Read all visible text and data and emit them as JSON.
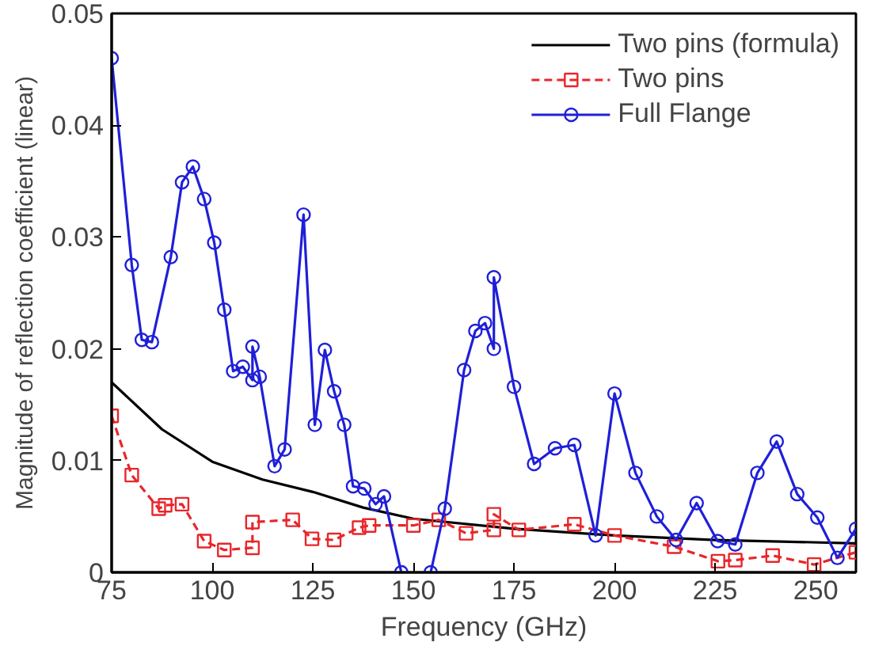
{
  "chart_data": {
    "type": "line",
    "xlabel": "Frequency (GHz)",
    "ylabel": "Magnitude of reflection coefficient (linear)",
    "xlim": [
      75,
      260
    ],
    "xticks": [
      75,
      100,
      125,
      150,
      175,
      200,
      225,
      250
    ],
    "ylim": [
      0,
      0.05
    ],
    "yticks": [
      {
        "value": 0,
        "label": "0"
      },
      0.01,
      0.02,
      0.03,
      0.04,
      0.05
    ],
    "grid": false,
    "legend": "top right",
    "series": [
      {
        "name": "Two pins (formula)",
        "color": "#000000",
        "line_style": "solid",
        "marker": "none",
        "x": [
          75,
          87.5,
          100,
          112.5,
          125,
          137.5,
          150,
          175,
          200,
          225,
          260
        ],
        "values": [
          0.017,
          0.0128,
          0.0099,
          0.0083,
          0.0072,
          0.0058,
          0.0048,
          0.0039,
          0.0033,
          0.0029,
          0.0026
        ]
      },
      {
        "name": "Two pins",
        "color": "#e8262a",
        "line_style": "dashed",
        "marker": "square",
        "x": [
          75,
          80,
          86.7,
          88.3,
          92.5,
          98,
          103,
          110,
          110,
          120,
          124.8,
          130.3,
          136.5,
          139,
          150,
          156.3,
          163.1,
          170,
          170,
          176.2,
          190,
          200,
          214.8,
          225.7,
          230,
          239.3,
          249.6,
          260
        ],
        "values": [
          0.014,
          0.0087,
          0.0057,
          0.006,
          0.0061,
          0.0028,
          0.002,
          0.0022,
          0.0045,
          0.0047,
          0.003,
          0.0029,
          0.004,
          0.0042,
          0.0042,
          0.0047,
          0.0035,
          0.0038,
          0.0052,
          0.0038,
          0.0043,
          0.0033,
          0.0023,
          0.001,
          0.0011,
          0.0015,
          0.0007,
          0.0018
        ]
      },
      {
        "name": "Full Flange",
        "color": "#1f1fd8",
        "line_style": "solid",
        "marker": "circle",
        "x": [
          75,
          80,
          82.5,
          85,
          89.7,
          92.5,
          95.2,
          98,
          100.5,
          103,
          105.2,
          107.6,
          110,
          110,
          111.8,
          115.5,
          118,
          122.7,
          125.5,
          128,
          130.3,
          132.8,
          135,
          137.8,
          140.6,
          142.7,
          147,
          150.5,
          154.3,
          157.8,
          162.6,
          165.4,
          167.8,
          170,
          170,
          175,
          180,
          185.2,
          190,
          195.3,
          200,
          205.2,
          210.5,
          215.3,
          220.4,
          225.6,
          230,
          235.5,
          240.3,
          245.4,
          250.4,
          255.4,
          260
        ],
        "values": [
          0.046,
          0.0275,
          0.0208,
          0.0206,
          0.0282,
          0.0349,
          0.0363,
          0.0334,
          0.0295,
          0.0235,
          0.018,
          0.0184,
          0.0172,
          0.0202,
          0.0175,
          0.0095,
          0.011,
          0.032,
          0.0132,
          0.0199,
          0.0162,
          0.0132,
          0.0077,
          0.0075,
          0.0061,
          0.0068,
          0,
          null,
          0,
          0.0057,
          0.0181,
          0.0216,
          0.0223,
          0.02,
          0.0264,
          0.0166,
          0.0097,
          0.0111,
          0.0114,
          0.0033,
          0.016,
          0.0089,
          0.005,
          0.0029,
          0.0062,
          0.0028,
          0.0025,
          0.0089,
          0.0117,
          0.007,
          0.0049,
          0.0013,
          0.0039
        ]
      }
    ]
  }
}
